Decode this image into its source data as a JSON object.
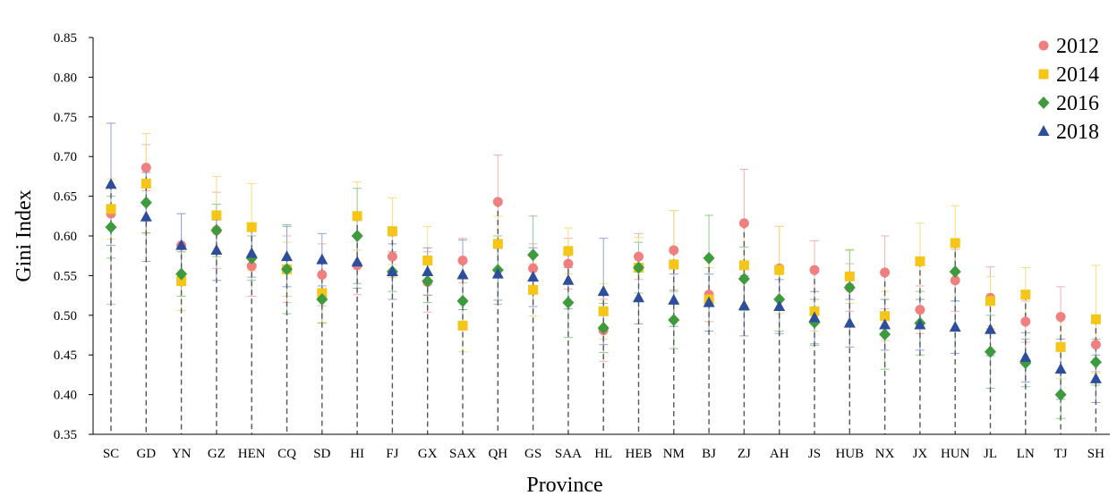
{
  "chart_data": {
    "type": "scatter",
    "xlabel": "Province",
    "ylabel": "Gini Index",
    "ylim": [
      0.35,
      0.85
    ],
    "yticks": [
      "0.35",
      "0.40",
      "0.45",
      "0.50",
      "0.55",
      "0.60",
      "0.65",
      "0.70",
      "0.75",
      "0.80",
      "0.85"
    ],
    "legend_position": "top-right",
    "grid": false,
    "error_bars": true,
    "categories": [
      "SC",
      "GD",
      "YN",
      "GZ",
      "HEN",
      "CQ",
      "SD",
      "HI",
      "FJ",
      "GX",
      "SAX",
      "QH",
      "GS",
      "SAA",
      "HL",
      "HEB",
      "NM",
      "BJ",
      "ZJ",
      "AH",
      "JS",
      "HUB",
      "NX",
      "JX",
      "HUN",
      "JL",
      "LN",
      "TJ",
      "SH"
    ],
    "series": [
      {
        "name": "2012",
        "marker": "circle",
        "color": "#f08080",
        "values": [
          0.628,
          0.686,
          0.588,
          0.607,
          0.562,
          0.558,
          0.551,
          0.563,
          0.574,
          0.542,
          0.569,
          0.643,
          0.559,
          0.565,
          0.481,
          0.574,
          0.582,
          0.526,
          0.616,
          0.559,
          0.557,
          0.535,
          0.554,
          0.507,
          0.544,
          0.522,
          0.492,
          0.498,
          0.463
        ],
        "error_upper": [
          0.742,
          0.715,
          0.628,
          0.655,
          0.6,
          0.6,
          0.59,
          0.6,
          0.6,
          0.58,
          0.597,
          0.702,
          0.59,
          0.597,
          0.52,
          0.603,
          0.632,
          0.56,
          0.684,
          0.612,
          0.594,
          0.565,
          0.6,
          0.537,
          0.583,
          0.561,
          0.518,
          0.536,
          0.497
        ]
      },
      {
        "name": "2014",
        "marker": "square",
        "color": "#f5c518",
        "values": [
          0.634,
          0.666,
          0.543,
          0.626,
          0.611,
          0.558,
          0.528,
          0.625,
          0.606,
          0.569,
          0.487,
          0.59,
          0.532,
          0.581,
          0.505,
          0.56,
          0.564,
          0.52,
          0.563,
          0.557,
          0.505,
          0.549,
          0.499,
          0.568,
          0.591,
          0.518,
          0.526,
          0.46,
          0.495
        ],
        "error_upper": [
          0.672,
          0.729,
          0.58,
          0.675,
          0.666,
          0.592,
          0.565,
          0.668,
          0.648,
          0.612,
          0.52,
          0.625,
          0.565,
          0.61,
          0.54,
          0.598,
          0.632,
          0.56,
          0.614,
          0.612,
          0.53,
          0.583,
          0.53,
          0.616,
          0.638,
          0.549,
          0.56,
          0.5,
          0.563
        ]
      },
      {
        "name": "2016",
        "marker": "diamond",
        "color": "#3d9a3d",
        "values": [
          0.611,
          0.642,
          0.552,
          0.607,
          0.572,
          0.558,
          0.52,
          0.6,
          0.555,
          0.543,
          0.518,
          0.557,
          0.576,
          0.516,
          0.484,
          0.56,
          0.494,
          0.572,
          0.546,
          0.52,
          0.491,
          0.535,
          0.476,
          0.49,
          0.555,
          0.454,
          0.44,
          0.4,
          0.441
        ],
        "error_upper": [
          0.65,
          0.68,
          0.58,
          0.64,
          0.6,
          0.614,
          0.55,
          0.66,
          0.58,
          0.57,
          0.55,
          0.6,
          0.625,
          0.56,
          0.515,
          0.592,
          0.53,
          0.626,
          0.586,
          0.56,
          0.52,
          0.582,
          0.52,
          0.53,
          0.592,
          0.5,
          0.47,
          0.43,
          0.47
        ]
      },
      {
        "name": "2018",
        "marker": "triangle",
        "color": "#2e4d9a",
        "values": [
          0.665,
          0.624,
          0.588,
          0.582,
          0.578,
          0.574,
          0.57,
          0.567,
          0.555,
          0.555,
          0.551,
          0.552,
          0.548,
          0.544,
          0.53,
          0.522,
          0.519,
          0.516,
          0.512,
          0.511,
          0.497,
          0.49,
          0.488,
          0.488,
          0.485,
          0.482,
          0.447,
          0.432,
          0.42
        ],
        "error_upper": [
          0.742,
          0.68,
          0.628,
          0.62,
          0.608,
          0.612,
          0.603,
          0.6,
          0.59,
          0.585,
          0.595,
          0.585,
          0.585,
          0.58,
          0.597,
          0.555,
          0.552,
          0.552,
          0.55,
          0.545,
          0.53,
          0.52,
          0.52,
          0.52,
          0.518,
          0.515,
          0.478,
          0.47,
          0.45
        ]
      }
    ]
  }
}
